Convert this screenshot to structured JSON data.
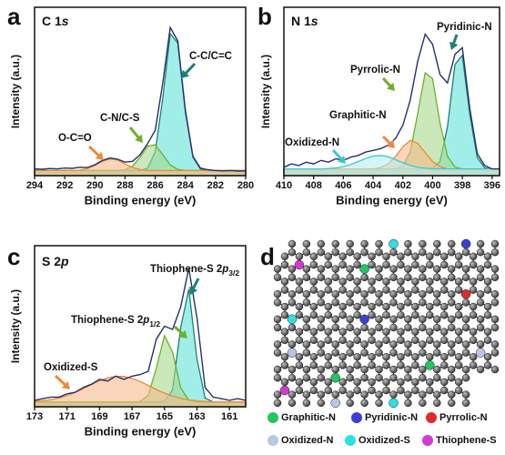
{
  "chart_data": [
    {
      "type": "line",
      "panel": "a",
      "title": "C 1",
      "title_italic": "s",
      "xlabel": "Binding energy (eV)",
      "ylabel": "Intensity (a.u.)",
      "xlim": [
        294,
        280
      ],
      "xticks": [
        294,
        292,
        290,
        288,
        286,
        284,
        282,
        280
      ],
      "ylim": [
        0,
        1
      ],
      "x": [
        294,
        293.5,
        293,
        292.5,
        292,
        291.5,
        291,
        290.5,
        290,
        289.5,
        289,
        288.5,
        288,
        287.5,
        287,
        286.5,
        286,
        285.5,
        285,
        284.5,
        284,
        283.5,
        283,
        282.5,
        282,
        281.5,
        281,
        280.5,
        280
      ],
      "series": [
        {
          "name": "C-C/C=C",
          "color": "#62e2d8",
          "edge": "#1d7f7a",
          "values": [
            0.03,
            0.03,
            0.03,
            0.03,
            0.03,
            0.03,
            0.03,
            0.03,
            0.03,
            0.03,
            0.03,
            0.03,
            0.03,
            0.03,
            0.03,
            0.044,
            0.142,
            0.46,
            0.843,
            0.787,
            0.378,
            0.109,
            0.039,
            0.03,
            0.03,
            0.03,
            0.03,
            0.03,
            0.03
          ]
        },
        {
          "name": "C-N/C-S",
          "color": "#a6d98a",
          "edge": "#6fb02a",
          "values": [
            0.03,
            0.03,
            0.03,
            0.03,
            0.03,
            0.03,
            0.03,
            0.03,
            0.03,
            0.03,
            0.03,
            0.03,
            0.035,
            0.056,
            0.11,
            0.175,
            0.183,
            0.124,
            0.064,
            0.037,
            0.03,
            0.03,
            0.03,
            0.03,
            0.03,
            0.03,
            0.03,
            0.03,
            0.03
          ]
        },
        {
          "name": "O-C=O",
          "color": "#f6b98a",
          "edge": "#ea8a3c",
          "values": [
            0.03,
            0.03,
            0.03,
            0.03,
            0.03,
            0.03,
            0.033,
            0.042,
            0.06,
            0.085,
            0.099,
            0.093,
            0.07,
            0.048,
            0.036,
            0.03,
            0.03,
            0.03,
            0.03,
            0.03,
            0.03,
            0.03,
            0.03,
            0.03,
            0.03,
            0.03,
            0.03,
            0.03,
            0.03
          ]
        },
        {
          "color": "#27306e",
          "values": [
            0.04,
            0.038,
            0.042,
            0.04,
            0.045,
            0.043,
            0.05,
            0.048,
            0.065,
            0.09,
            0.105,
            0.098,
            0.08,
            0.085,
            0.125,
            0.19,
            0.27,
            0.55,
            0.88,
            0.8,
            0.39,
            0.115,
            0.045,
            0.035,
            0.03,
            0.028,
            0.03,
            0.027,
            0.028
          ]
        }
      ]
    },
    {
      "type": "line",
      "panel": "b",
      "title": "N 1",
      "title_italic": "s",
      "xlabel": "Binding energy (eV)",
      "ylabel": "Intensity (a.u.)",
      "xlim": [
        410,
        395.5
      ],
      "xticks": [
        410,
        408,
        406,
        404,
        402,
        400,
        398,
        396
      ],
      "ylim": [
        0,
        1
      ],
      "x": [
        410,
        409.5,
        409,
        408.5,
        408,
        407.5,
        407,
        406.5,
        406,
        405.5,
        405,
        404.5,
        404,
        403.5,
        403,
        402.5,
        402,
        401.5,
        401,
        400.5,
        400,
        399.5,
        399,
        398.5,
        398,
        397.5,
        397,
        396.5,
        396,
        395.5
      ],
      "series": [
        {
          "name": "Pyridinic-N",
          "color": "#62e2d8",
          "edge": "#1d7f7a",
          "values": [
            0.04,
            0.04,
            0.04,
            0.04,
            0.04,
            0.04,
            0.04,
            0.04,
            0.04,
            0.04,
            0.04,
            0.04,
            0.04,
            0.04,
            0.04,
            0.04,
            0.04,
            0.04,
            0.04,
            0.04,
            0.044,
            0.085,
            0.29,
            0.66,
            0.714,
            0.364,
            0.108,
            0.046,
            0.04,
            0.04
          ]
        },
        {
          "name": "Pyrrolic-N",
          "color": "#a6d98a",
          "edge": "#6fb02a",
          "values": [
            0.04,
            0.04,
            0.04,
            0.04,
            0.04,
            0.04,
            0.04,
            0.04,
            0.04,
            0.04,
            0.04,
            0.04,
            0.04,
            0.04,
            0.04,
            0.04,
            0.057,
            0.142,
            0.37,
            0.611,
            0.577,
            0.313,
            0.115,
            0.051,
            0.04,
            0.04,
            0.04,
            0.04,
            0.04,
            0.04
          ]
        },
        {
          "name": "Graphitic-N",
          "color": "#f6b98a",
          "edge": "#ea8a3c",
          "values": [
            0.04,
            0.04,
            0.04,
            0.04,
            0.04,
            0.04,
            0.04,
            0.04,
            0.04,
            0.04,
            0.04,
            0.04,
            0.04,
            0.048,
            0.069,
            0.113,
            0.172,
            0.209,
            0.192,
            0.137,
            0.084,
            0.054,
            0.04,
            0.04,
            0.04,
            0.04,
            0.04,
            0.04,
            0.04,
            0.04
          ]
        },
        {
          "name": "Oxidized-N",
          "color": "#b4eef0",
          "edge": "#3cc7d0",
          "values": [
            0.04,
            0.04,
            0.04,
            0.04,
            0.04,
            0.04,
            0.042,
            0.046,
            0.054,
            0.066,
            0.084,
            0.102,
            0.116,
            0.12,
            0.112,
            0.095,
            0.076,
            0.061,
            0.05,
            0.044,
            0.04,
            0.04,
            0.04,
            0.04,
            0.04,
            0.04,
            0.04,
            0.04,
            0.04,
            0.04
          ]
        },
        {
          "color": "#27306e",
          "values": [
            0.05,
            0.07,
            0.06,
            0.08,
            0.07,
            0.09,
            0.08,
            0.1,
            0.09,
            0.11,
            0.12,
            0.14,
            0.15,
            0.16,
            0.18,
            0.22,
            0.3,
            0.45,
            0.68,
            0.84,
            0.78,
            0.6,
            0.55,
            0.72,
            0.76,
            0.4,
            0.13,
            0.06,
            0.04,
            0.04
          ]
        }
      ]
    },
    {
      "type": "line",
      "panel": "c",
      "title": "S 2",
      "title_italic": "p",
      "xlabel": "Binding energy (eV)",
      "ylabel": "Intensity (a.u.)",
      "xlim": [
        173,
        160
      ],
      "xticks": [
        173,
        171,
        169,
        167,
        165,
        163,
        161
      ],
      "ylim": [
        0,
        1
      ],
      "x": [
        173,
        172.5,
        172,
        171.5,
        171,
        170.5,
        170,
        169.5,
        169,
        168.5,
        168,
        167.5,
        167,
        166.5,
        166,
        165.5,
        165,
        164.5,
        164,
        163.5,
        163,
        162.5,
        162,
        161.5,
        161,
        160.5,
        160
      ],
      "series": [
        {
          "name": "Thiophene-S 2",
          "name_italic": "p",
          "name_sub": "3/2",
          "color": "#62e2d8",
          "edge": "#1d7f7a",
          "values": [
            0.03,
            0.03,
            0.03,
            0.03,
            0.03,
            0.03,
            0.03,
            0.03,
            0.03,
            0.03,
            0.03,
            0.03,
            0.03,
            0.03,
            0.03,
            0.03,
            0.033,
            0.106,
            0.492,
            0.73,
            0.295,
            0.055,
            0.03,
            0.03,
            0.03,
            0.03,
            0.03
          ]
        },
        {
          "name": "Thiophene-S 2",
          "name_italic": "p",
          "name_sub": "1/2",
          "color": "#a6d98a",
          "edge": "#6fb02a",
          "values": [
            0.03,
            0.03,
            0.03,
            0.03,
            0.03,
            0.03,
            0.03,
            0.03,
            0.03,
            0.03,
            0.03,
            0.03,
            0.03,
            0.033,
            0.071,
            0.24,
            0.442,
            0.339,
            0.118,
            0.04,
            0.03,
            0.03,
            0.03,
            0.03,
            0.03,
            0.03,
            0.03
          ]
        },
        {
          "name": "Oxidized-S",
          "color": "#f6b98a",
          "edge": "#ea8a3c",
          "values": [
            0.034,
            0.038,
            0.044,
            0.054,
            0.069,
            0.089,
            0.112,
            0.138,
            0.161,
            0.18,
            0.189,
            0.188,
            0.177,
            0.157,
            0.133,
            0.107,
            0.085,
            0.066,
            0.052,
            0.043,
            0.037,
            0.033,
            0.03,
            0.03,
            0.03,
            0.03,
            0.03
          ]
        },
        {
          "color": "#27306e",
          "values": [
            0.04,
            0.05,
            0.06,
            0.06,
            0.08,
            0.09,
            0.12,
            0.14,
            0.17,
            0.16,
            0.19,
            0.17,
            0.19,
            0.2,
            0.22,
            0.42,
            0.5,
            0.48,
            0.62,
            0.86,
            0.55,
            0.12,
            0.06,
            0.05,
            0.04,
            0.05,
            0.04
          ]
        }
      ]
    }
  ],
  "diagram": {
    "panel": "d",
    "legend": [
      {
        "label": "Graphitic-N",
        "color": "#22c55e"
      },
      {
        "label": "Pyridinic-N",
        "color": "#3b3fd6"
      },
      {
        "label": "Pyrrolic-N",
        "color": "#e02a2a"
      },
      {
        "label": "Oxidized-N",
        "color": "#b9c6e6"
      },
      {
        "label": "Oxidized-S",
        "color": "#2ee0e0"
      },
      {
        "label": "Thiophene-S",
        "color": "#d23ad6"
      }
    ]
  }
}
